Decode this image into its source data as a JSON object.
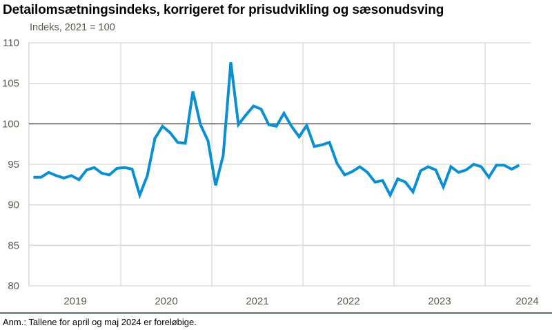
{
  "title": "Detailomsætningsindeks, korrigeret for prisudvikling og sæsonudsving",
  "y_axis_label": "Indeks, 2021 = 100",
  "footnote": "Anm.: Tallene for april og maj 2024 er foreløbige.",
  "colors": {
    "line": "#0a8fd4",
    "grid": "#d9d8d0",
    "reference_line": "#5e5e50",
    "axis_text": "#5a5a4e",
    "footer_rule": "#7d8b8c"
  },
  "chart_data": {
    "type": "line",
    "title": "Detailomsætningsindeks, korrigeret for prisudvikling og sæsonudsving",
    "xlabel": "",
    "ylabel": "Indeks, 2021 = 100",
    "ylim": [
      80,
      110
    ],
    "yticks": [
      80,
      85,
      90,
      95,
      100,
      105,
      110
    ],
    "reference_line": 100,
    "grid": true,
    "legend": "none",
    "x_tick_labels": [
      "2019",
      "2020",
      "2021",
      "2022",
      "2023",
      "2024"
    ],
    "series": [
      {
        "name": "Detailomsætningsindeks",
        "start": "2019-01",
        "frequency": "monthly",
        "values": [
          93.4,
          93.4,
          94.0,
          93.6,
          93.3,
          93.6,
          93.1,
          94.3,
          94.6,
          93.9,
          93.7,
          94.5,
          94.6,
          94.4,
          91.2,
          93.6,
          98.2,
          99.7,
          98.9,
          97.7,
          97.6,
          104.0,
          99.9,
          97.9,
          92.4,
          96.1,
          107.6,
          99.9,
          101.1,
          102.2,
          101.8,
          99.9,
          99.7,
          101.3,
          99.7,
          98.4,
          99.8,
          97.2,
          97.4,
          97.7,
          95.1,
          93.7,
          94.1,
          94.7,
          94.0,
          92.8,
          93.0,
          91.2,
          93.2,
          92.8,
          91.6,
          94.2,
          94.7,
          94.3,
          92.2,
          94.7,
          94.0,
          94.3,
          95.0,
          94.7,
          93.4,
          94.9,
          94.9,
          94.4,
          94.9
        ]
      }
    ]
  }
}
